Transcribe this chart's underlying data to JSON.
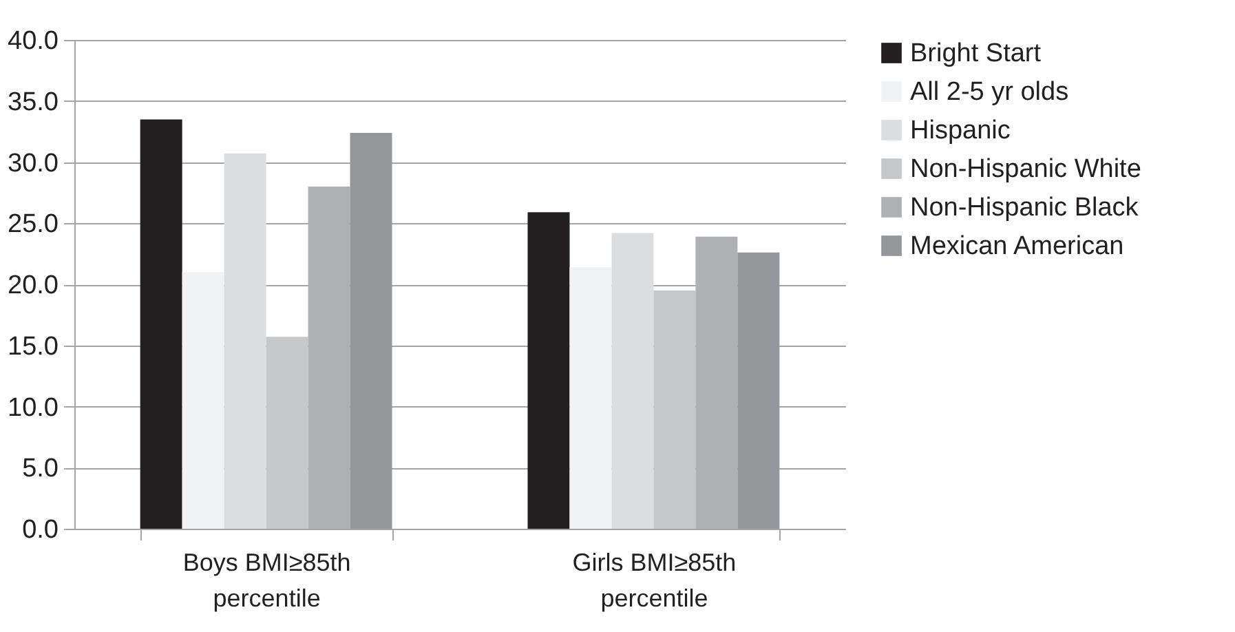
{
  "chart_data": {
    "type": "bar",
    "categories": [
      "Boys BMI≥85th percentile",
      "Girls BMI≥85th percentile"
    ],
    "series": [
      {
        "name": "Bright Start",
        "color": "#231f20",
        "values": [
          33.5,
          25.9
        ]
      },
      {
        "name": "All 2-5 yr olds",
        "color": "#f1f2f3",
        "values": [
          21.0,
          21.4
        ]
      },
      {
        "name": "Hispanic",
        "color": "#dcdddf",
        "values": [
          30.7,
          24.2
        ]
      },
      {
        "name": "Non-Hispanic White",
        "color": "#c6c7c9",
        "values": [
          15.7,
          19.5
        ]
      },
      {
        "name": "Non-Hispanic Black",
        "color": "#afb0b3",
        "values": [
          28.0,
          23.9
        ]
      },
      {
        "name": "Mexican American",
        "color": "#959699",
        "values": [
          32.4,
          22.6
        ]
      }
    ],
    "ylim": [
      0,
      40
    ],
    "yticks": [
      {
        "value": 0,
        "label": "0.0"
      },
      {
        "value": 5,
        "label": "5.0"
      },
      {
        "value": 10,
        "label": "10.0"
      },
      {
        "value": 15,
        "label": "15.0"
      },
      {
        "value": 20,
        "label": "20.0"
      },
      {
        "value": 25,
        "label": "25.0"
      },
      {
        "value": 30,
        "label": "30.0"
      },
      {
        "value": 35,
        "label": "35.0"
      },
      {
        "value": 40,
        "label": "40.0"
      }
    ],
    "grid": "y",
    "legend": "right"
  }
}
